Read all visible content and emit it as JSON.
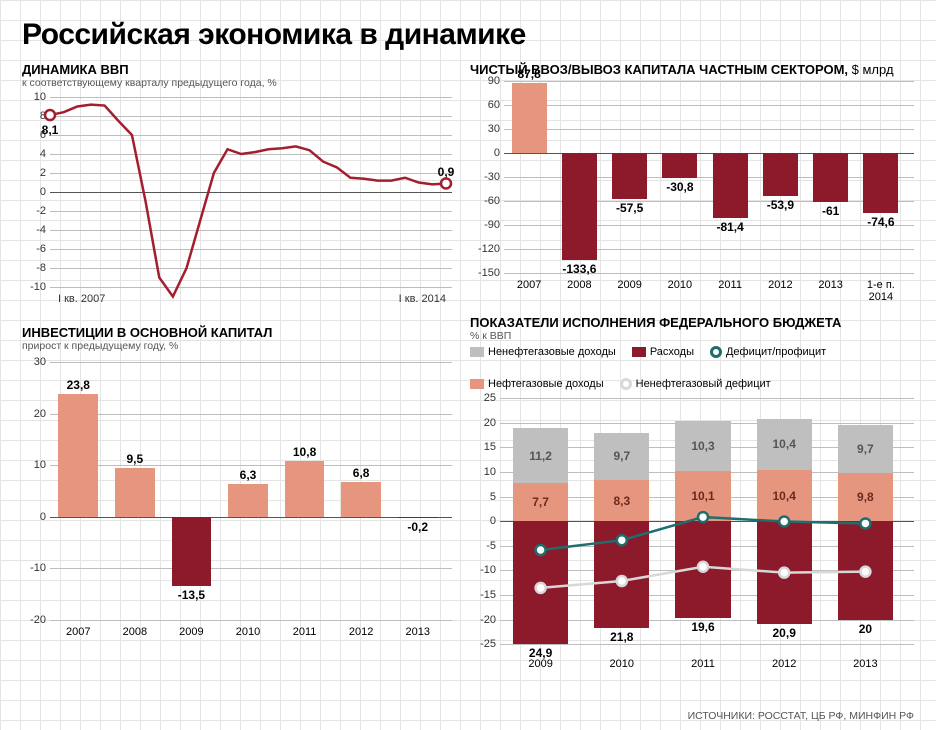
{
  "title": "Российская экономика в динамике",
  "source": "ИСТОЧНИКИ: РОССТАТ, ЦБ РФ, МИНФИН РФ",
  "colors": {
    "dark_red": "#8c1a2a",
    "salmon": "#e6957f",
    "grey_bar": "#bfbfbf",
    "line_red": "#a31e2f",
    "teal": "#1f6e6e",
    "light_line": "#d8d8d8",
    "grid": "#bdbdbd",
    "text": "#333333"
  },
  "gdp": {
    "title": "ДИНАМИКА ВВП",
    "subtitle": "к соответствующему кварталу предыдущего года, %",
    "x_start": "I кв. 2007",
    "x_end": "I кв. 2014",
    "ylim": [
      -10,
      10
    ],
    "ytick_step": 2,
    "first_label": "8,1",
    "last_label": "0,9",
    "series": [
      8.1,
      8.4,
      9,
      9.2,
      9.1,
      7.5,
      6,
      -1,
      -9,
      -11,
      -8,
      -3,
      2,
      4.5,
      4,
      4.2,
      4.5,
      4.6,
      4.8,
      4.4,
      3.2,
      2.6,
      1.5,
      1.4,
      1.2,
      1.2,
      1.5,
      1,
      0.8,
      0.9
    ]
  },
  "invest": {
    "title": "ИНВЕСТИЦИИ В ОСНОВНОЙ КАПИТАЛ",
    "subtitle": "прирост к предыдущему году, %",
    "ylim": [
      -20,
      30
    ],
    "ytick_step": 10,
    "categories": [
      "2007",
      "2008",
      "2009",
      "2010",
      "2011",
      "2012",
      "2013"
    ],
    "values": [
      23.8,
      9.5,
      -13.5,
      6.3,
      10.8,
      6.8,
      -0.2
    ],
    "labels": [
      "23,8",
      "9,5",
      "-13,5",
      "6,3",
      "10,8",
      "6,8",
      "-0,2"
    ]
  },
  "capital": {
    "title": "ЧИСТЫЙ ВВОЗ/ВЫВОЗ КАПИТАЛА ЧАСТНЫМ СЕКТОРОМ,",
    "unit": "$ млрд",
    "ylim": [
      -150,
      90
    ],
    "ytick_step": 30,
    "categories": [
      "2007",
      "2008",
      "2009",
      "2010",
      "2011",
      "2012",
      "2013",
      "1-е п.\n2014"
    ],
    "values": [
      87.8,
      -133.6,
      -57.5,
      -30.8,
      -81.4,
      -53.9,
      -61,
      -74.6
    ],
    "labels": [
      "87,8",
      "-133,6",
      "-57,5",
      "-30,8",
      "-81,4",
      "-53,9",
      "-61",
      "-74,6"
    ]
  },
  "budget": {
    "title": "ПОКАЗАТЕЛИ ИСПОЛНЕНИЯ ФЕДЕРАЛЬНОГО БЮДЖЕТА",
    "subtitle": "% к ВВП",
    "legend": {
      "nonoil": "Ненефтегазовые доходы",
      "oil": "Нефтегазовые доходы",
      "expend": "Расходы",
      "deficit": "Дефицит/профицит",
      "nonoil_def": "Ненефтегазовый дефицит"
    },
    "ylim": [
      -25,
      25
    ],
    "ytick_step": 5,
    "categories": [
      "2009",
      "2010",
      "2011",
      "2012",
      "2013"
    ],
    "grey": [
      11.2,
      9.7,
      10.3,
      10.4,
      9.7
    ],
    "salmon": [
      7.7,
      8.3,
      10.1,
      10.4,
      9.8
    ],
    "dark": [
      24.9,
      21.8,
      19.6,
      20.9,
      20
    ],
    "grey_lbl": [
      "11,2",
      "9,7",
      "10,3",
      "10,4",
      "9,7"
    ],
    "salmon_lbl": [
      "7,7",
      "8,3",
      "10,1",
      "10,4",
      "9,8"
    ],
    "dark_lbl": [
      "24,9",
      "21,8",
      "19,6",
      "20,9",
      "20"
    ],
    "teal_line": [
      -5.9,
      -3.9,
      0.8,
      -0.1,
      -0.5
    ],
    "light_line": [
      -13.6,
      -12.2,
      -9.3,
      -10.5,
      -10.3
    ]
  }
}
